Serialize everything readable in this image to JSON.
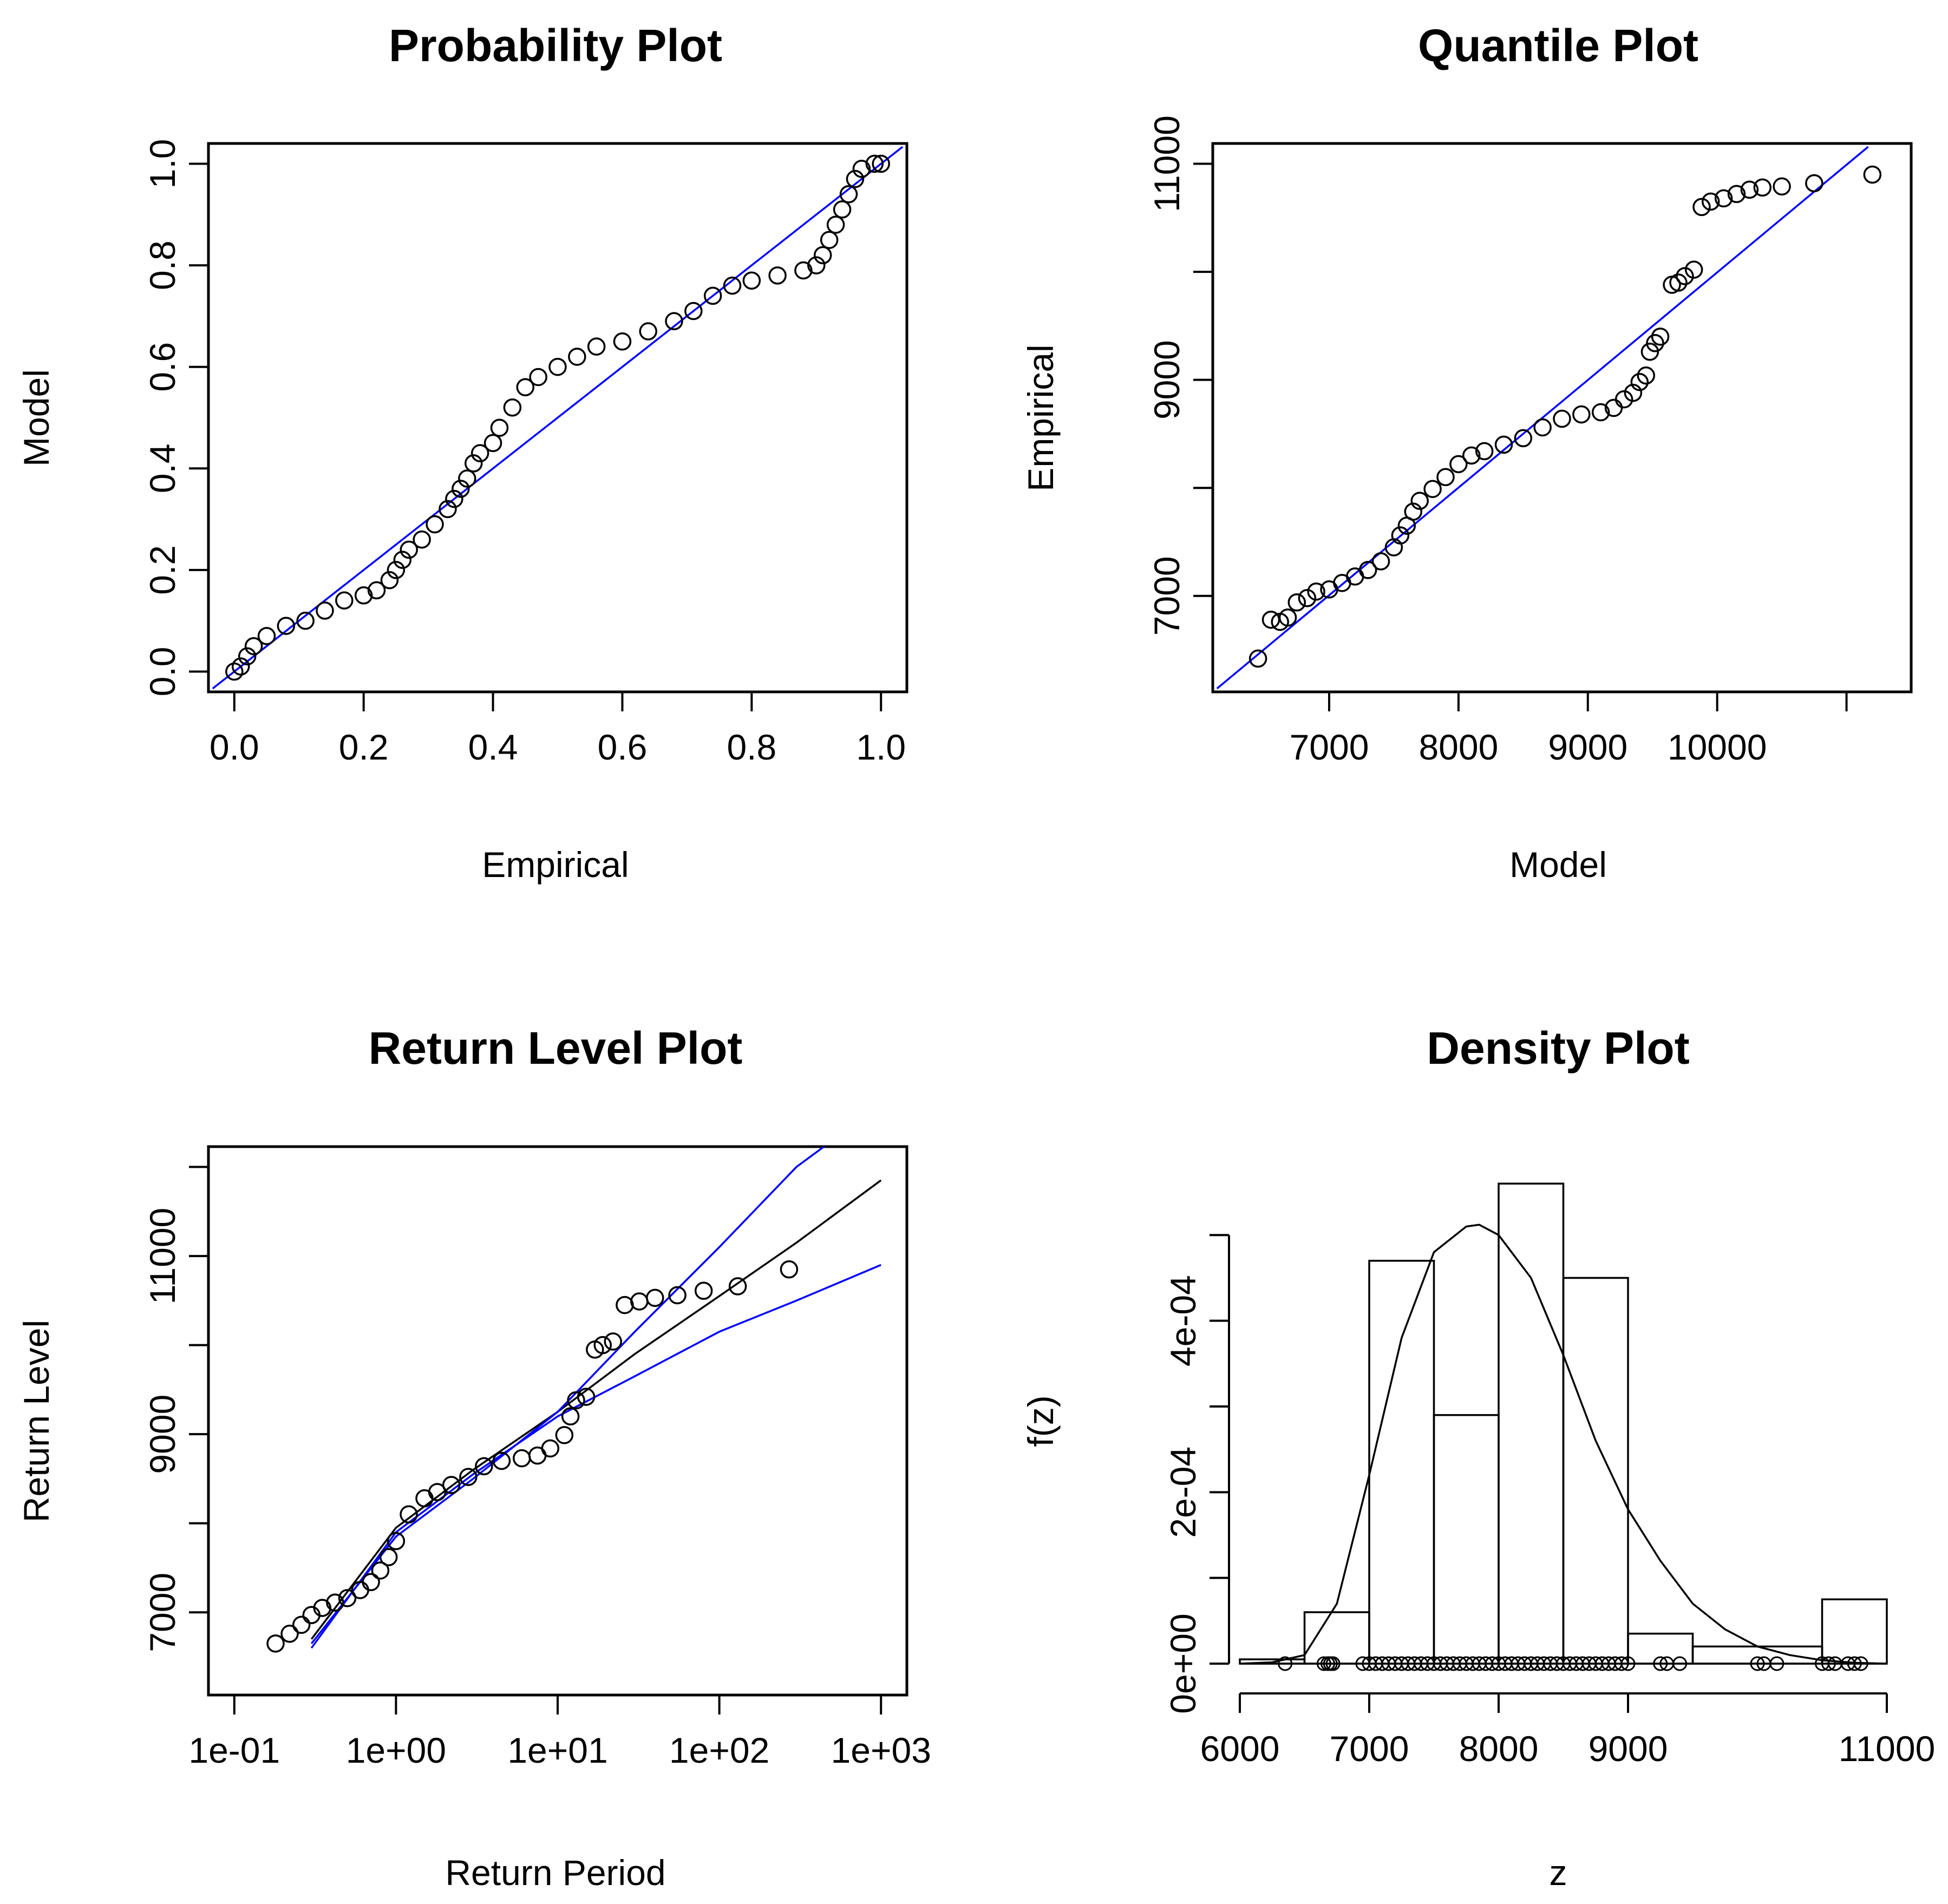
{
  "colors": {
    "ink": "#000000",
    "ref_line": "#0000ff",
    "background": "#ffffff"
  },
  "chart_data": [
    {
      "type": "scatter",
      "title": "Probability Plot",
      "xlabel": "Empirical",
      "ylabel": "Model",
      "xlim": [
        0,
        1
      ],
      "ylim": [
        0,
        1
      ],
      "xticks": [
        0,
        0.2,
        0.4,
        0.6,
        0.8,
        1.0
      ],
      "xtick_labels": [
        "0.0",
        "0.2",
        "0.4",
        "0.6",
        "0.8",
        "1.0"
      ],
      "yticks": [
        0,
        0.2,
        0.4,
        0.6,
        0.8,
        1.0
      ],
      "ytick_labels": [
        "0.0",
        "0.2",
        "0.4",
        "0.6",
        "0.8",
        "1.0"
      ],
      "grid": false,
      "reference_line": {
        "from": [
          0,
          0
        ],
        "to": [
          1,
          1
        ],
        "color": "#0000ff"
      },
      "points_xy": [
        [
          0,
          0
        ],
        [
          0.01,
          0.01
        ],
        [
          0.02,
          0.03
        ],
        [
          0.03,
          0.05
        ],
        [
          0.05,
          0.07
        ],
        [
          0.08,
          0.09
        ],
        [
          0.11,
          0.1
        ],
        [
          0.14,
          0.12
        ],
        [
          0.17,
          0.14
        ],
        [
          0.2,
          0.15
        ],
        [
          0.22,
          0.16
        ],
        [
          0.24,
          0.18
        ],
        [
          0.25,
          0.2
        ],
        [
          0.26,
          0.22
        ],
        [
          0.27,
          0.24
        ],
        [
          0.29,
          0.26
        ],
        [
          0.31,
          0.29
        ],
        [
          0.33,
          0.32
        ],
        [
          0.34,
          0.34
        ],
        [
          0.35,
          0.36
        ],
        [
          0.36,
          0.38
        ],
        [
          0.37,
          0.41
        ],
        [
          0.38,
          0.43
        ],
        [
          0.4,
          0.45
        ],
        [
          0.41,
          0.48
        ],
        [
          0.43,
          0.52
        ],
        [
          0.45,
          0.56
        ],
        [
          0.47,
          0.58
        ],
        [
          0.5,
          0.6
        ],
        [
          0.53,
          0.62
        ],
        [
          0.56,
          0.64
        ],
        [
          0.6,
          0.65
        ],
        [
          0.64,
          0.67
        ],
        [
          0.68,
          0.69
        ],
        [
          0.71,
          0.71
        ],
        [
          0.74,
          0.74
        ],
        [
          0.77,
          0.76
        ],
        [
          0.8,
          0.77
        ],
        [
          0.84,
          0.78
        ],
        [
          0.88,
          0.79
        ],
        [
          0.9,
          0.8
        ],
        [
          0.91,
          0.82
        ],
        [
          0.92,
          0.85
        ],
        [
          0.93,
          0.88
        ],
        [
          0.94,
          0.91
        ],
        [
          0.95,
          0.94
        ],
        [
          0.96,
          0.97
        ],
        [
          0.97,
          0.99
        ],
        [
          0.99,
          1.0
        ],
        [
          1.0,
          1.0
        ]
      ]
    },
    {
      "type": "scatter",
      "title": "Quantile Plot",
      "xlabel": "Model",
      "ylabel": "Empirical",
      "xlim": [
        6300,
        11300
      ],
      "ylim": [
        6300,
        11000
      ],
      "xticks": [
        7000,
        8000,
        9000,
        10000,
        11000
      ],
      "xtick_labels": [
        "7000",
        "8000",
        "9000",
        "10000",
        ""
      ],
      "yticks": [
        7000,
        8000,
        9000,
        10000,
        11000
      ],
      "ytick_labels": [
        "7000",
        "",
        "9000",
        "",
        "11000"
      ],
      "grid": false,
      "reference_line": {
        "from": [
          6300,
          6300
        ],
        "to": [
          11000,
          11000
        ],
        "color": "#0000ff"
      },
      "points_xy": [
        [
          6450,
          6420
        ],
        [
          6550,
          6780
        ],
        [
          6620,
          6760
        ],
        [
          6680,
          6800
        ],
        [
          6750,
          6940
        ],
        [
          6830,
          6980
        ],
        [
          6900,
          7040
        ],
        [
          7000,
          7060
        ],
        [
          7100,
          7120
        ],
        [
          7200,
          7180
        ],
        [
          7300,
          7240
        ],
        [
          7400,
          7320
        ],
        [
          7500,
          7450
        ],
        [
          7550,
          7560
        ],
        [
          7600,
          7650
        ],
        [
          7650,
          7780
        ],
        [
          7700,
          7880
        ],
        [
          7800,
          7990
        ],
        [
          7900,
          8100
        ],
        [
          8000,
          8220
        ],
        [
          8100,
          8300
        ],
        [
          8200,
          8340
        ],
        [
          8350,
          8400
        ],
        [
          8500,
          8460
        ],
        [
          8650,
          8560
        ],
        [
          8800,
          8640
        ],
        [
          8950,
          8680
        ],
        [
          9100,
          8700
        ],
        [
          9200,
          8740
        ],
        [
          9280,
          8820
        ],
        [
          9350,
          8880
        ],
        [
          9400,
          8980
        ],
        [
          9450,
          9040
        ],
        [
          9480,
          9260
        ],
        [
          9520,
          9340
        ],
        [
          9560,
          9400
        ],
        [
          9650,
          9880
        ],
        [
          9700,
          9900
        ],
        [
          9750,
          9960
        ],
        [
          9820,
          10020
        ],
        [
          9880,
          10600
        ],
        [
          9950,
          10650
        ],
        [
          10050,
          10680
        ],
        [
          10150,
          10720
        ],
        [
          10250,
          10760
        ],
        [
          10350,
          10780
        ],
        [
          10500,
          10790
        ],
        [
          10750,
          10820
        ],
        [
          11200,
          10900
        ]
      ]
    },
    {
      "type": "line",
      "title": "Return Level Plot",
      "xlabel": "Return Period",
      "ylabel": "Return Level",
      "x_scale": "log",
      "xlim": [
        0.1,
        1000
      ],
      "ylim": [
        6300,
        12000
      ],
      "xticks": [
        0.1,
        1,
        10,
        100,
        1000
      ],
      "xtick_labels": [
        "1e-01",
        "1e+00",
        "1e+01",
        "1e+02",
        "1e+03"
      ],
      "yticks": [
        7000,
        8000,
        9000,
        10000,
        11000,
        12000
      ],
      "ytick_labels": [
        "7000",
        "",
        "9000",
        "",
        "11000",
        ""
      ],
      "grid": false,
      "series": [
        {
          "style": "line",
          "color": "#000000",
          "x": [
            0.3,
            1,
            3,
            10,
            30,
            100,
            300,
            1000
          ],
          "y": [
            6700,
            7950,
            8600,
            9250,
            9900,
            10550,
            11150,
            11850
          ]
        },
        {
          "style": "line",
          "color": "#0000ff",
          "x": [
            0.3,
            1,
            3,
            10,
            30,
            100,
            300,
            1000
          ],
          "y": [
            6650,
            7850,
            8500,
            9250,
            10150,
            11100,
            12000,
            12700
          ]
        },
        {
          "style": "line",
          "color": "#0000ff",
          "x": [
            0.3,
            1,
            3,
            10,
            30,
            100,
            300,
            1000
          ],
          "y": [
            6600,
            7900,
            8550,
            9200,
            9650,
            10150,
            10500,
            10900
          ]
        },
        {
          "style": "points",
          "color": "#000000",
          "x": [
            0.18,
            0.22,
            0.26,
            0.3,
            0.35,
            0.42,
            0.5,
            0.6,
            0.7,
            0.8,
            0.9,
            1.0,
            1.2,
            1.5,
            1.8,
            2.2,
            2.8,
            3.5,
            4.5,
            6,
            7.5,
            9,
            11,
            12,
            13,
            15,
            17,
            19,
            22,
            26,
            32,
            40,
            55,
            80,
            130,
            270
          ],
          "y": [
            6650,
            6760,
            6860,
            6970,
            7050,
            7110,
            7160,
            7250,
            7340,
            7470,
            7620,
            7800,
            8100,
            8280,
            8350,
            8430,
            8520,
            8640,
            8700,
            8730,
            8760,
            8840,
            8990,
            9200,
            9380,
            9420,
            9950,
            10000,
            10040,
            10450,
            10490,
            10530,
            10560,
            10610,
            10660,
            10850
          ]
        }
      ]
    },
    {
      "type": "bar",
      "title": "Density Plot",
      "xlabel": "z",
      "ylabel": "f(z)",
      "xlim": [
        6000,
        11000
      ],
      "ylim": [
        0,
        0.00054
      ],
      "xticks": [
        6000,
        7000,
        8000,
        9000,
        11000
      ],
      "xtick_labels": [
        "6000",
        "7000",
        "8000",
        "9000",
        "11000"
      ],
      "yticks": [
        0,
        0.0001,
        0.0002,
        0.0003,
        0.0004,
        0.0005
      ],
      "ytick_labels": [
        "0e+00",
        "",
        "2e-04",
        "",
        "4e-04",
        ""
      ],
      "grid": false,
      "bins": [
        [
          6000,
          6500,
          5e-06
        ],
        [
          6500,
          7000,
          6e-05
        ],
        [
          7000,
          7500,
          0.00047
        ],
        [
          7500,
          8000,
          0.00029
        ],
        [
          8000,
          8500,
          0.00056
        ],
        [
          8500,
          9000,
          0.00045
        ],
        [
          9000,
          9500,
          3.5e-05
        ],
        [
          9500,
          10500,
          2e-05
        ],
        [
          10500,
          11000,
          7.5e-05
        ]
      ],
      "density_curve": {
        "x": [
          6000,
          6250,
          6500,
          6750,
          7000,
          7250,
          7500,
          7750,
          7850,
          8000,
          8250,
          8500,
          8750,
          9000,
          9250,
          9500,
          9750,
          10000,
          10250,
          10500,
          10750,
          11000
        ],
        "y": [
          0,
          1.5e-06,
          1e-05,
          7e-05,
          0.00022,
          0.00038,
          0.00048,
          0.00051,
          0.000512,
          0.0005,
          0.00045,
          0.00036,
          0.00026,
          0.00018,
          0.00012,
          7e-05,
          4e-05,
          2e-05,
          1e-05,
          4e-06,
          1e-06,
          0
        ]
      },
      "rug_x": [
        6350,
        6650,
        6680,
        6700,
        6720,
        6950,
        7000,
        7050,
        7100,
        7150,
        7200,
        7250,
        7300,
        7350,
        7400,
        7450,
        7500,
        7550,
        7600,
        7650,
        7700,
        7750,
        7800,
        7850,
        7900,
        7950,
        8000,
        8050,
        8100,
        8150,
        8200,
        8250,
        8300,
        8350,
        8400,
        8450,
        8500,
        8550,
        8600,
        8650,
        8700,
        8750,
        8800,
        8850,
        8900,
        8950,
        9000,
        9250,
        9300,
        9400,
        10000,
        10050,
        10150,
        10500,
        10550,
        10600,
        10700,
        10750,
        10800
      ]
    }
  ]
}
